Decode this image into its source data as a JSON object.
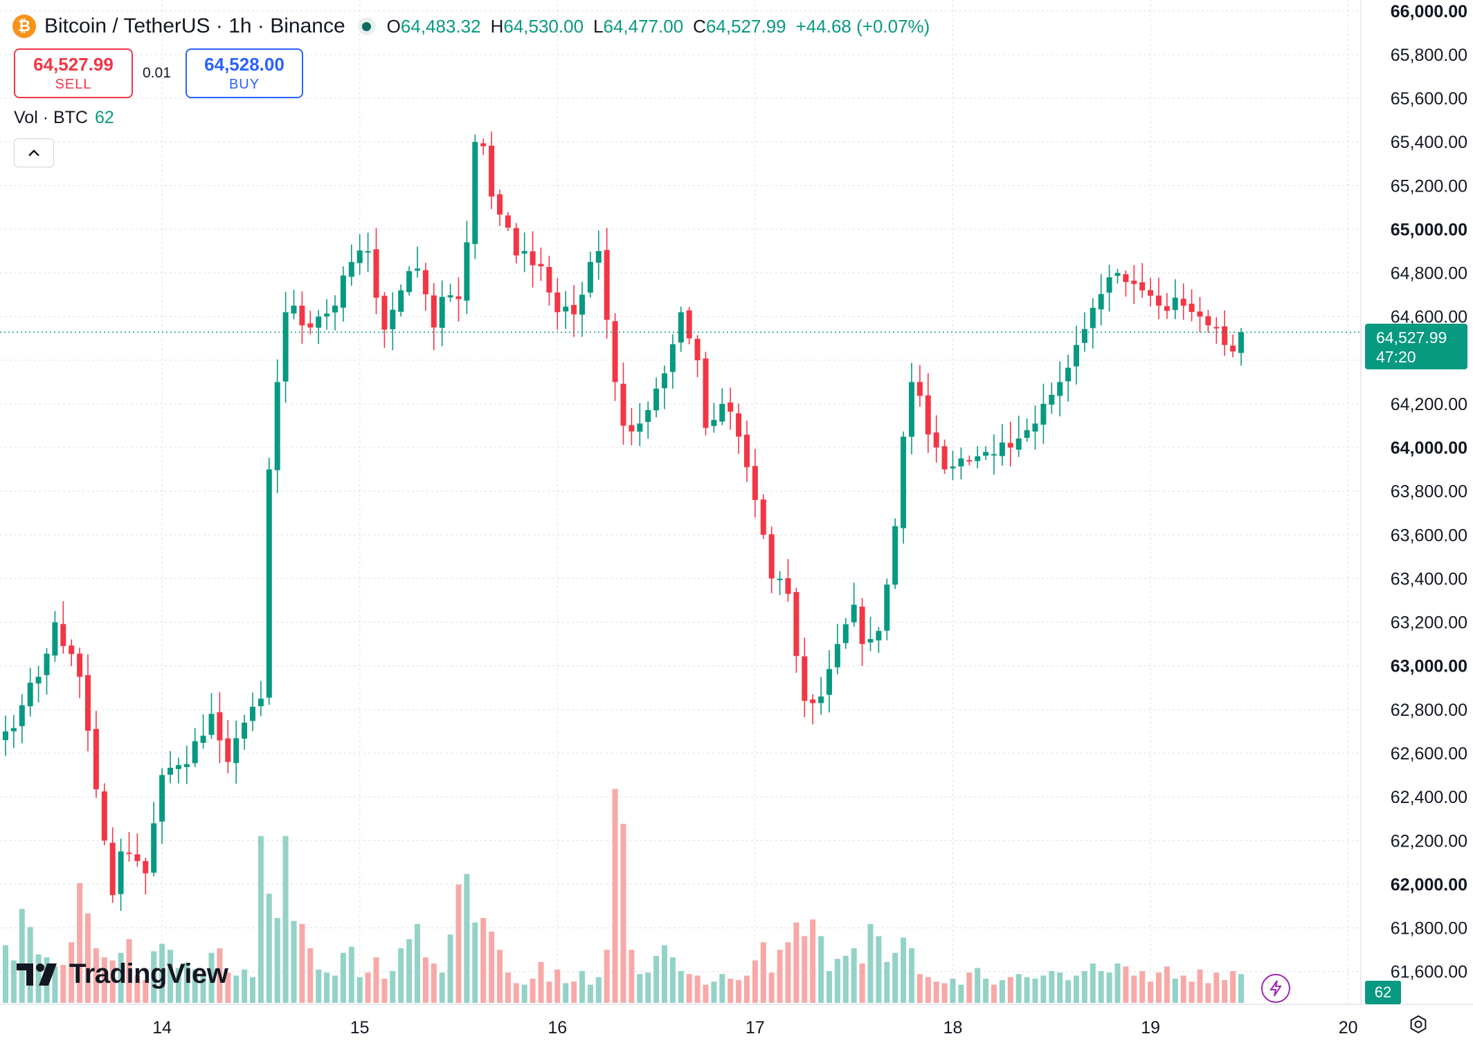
{
  "header": {
    "symbol_icon": "bitcoin-icon",
    "coin_glyph": "₿",
    "title": "Bitcoin / TetherUS · 1h · Binance",
    "live_indicator": "market-open-dot",
    "o_label": "O",
    "o_value": "64,483.32",
    "h_label": "H",
    "h_value": "64,530.00",
    "l_label": "L",
    "l_value": "64,477.00",
    "c_label": "C",
    "c_value": "64,527.99",
    "change": "+44.68 (+0.07%)"
  },
  "trade": {
    "sell_price": "64,527.99",
    "sell_label": "SELL",
    "spread": "0.01",
    "buy_price": "64,528.00",
    "buy_label": "BUY"
  },
  "volume_legend": {
    "label": "Vol · BTC",
    "value": "62"
  },
  "brand": "TradingView",
  "price_tag": {
    "price": "64,527.99",
    "countdown": "47:20"
  },
  "volume_tag": "62",
  "colors": {
    "up": "#089981",
    "down": "#f23645",
    "up_volume": "#93d2c7",
    "down_volume": "#f7a9a7"
  },
  "chart_data": {
    "type": "candlestick",
    "interval": "1h",
    "y_ticks": [
      "61,600.00",
      "61,800.00",
      "62,000.00",
      "62,200.00",
      "62,400.00",
      "62,600.00",
      "62,800.00",
      "63,000.00",
      "63,200.00",
      "63,400.00",
      "63,600.00",
      "63,800.00",
      "64,000.00",
      "64,200.00",
      "64,400.00",
      "64,600.00",
      "64,800.00",
      "65,000.00",
      "65,200.00",
      "65,400.00",
      "65,600.00",
      "65,800.00",
      "66,000.00"
    ],
    "y_tick_values": [
      61600,
      61800,
      62000,
      62200,
      62400,
      62600,
      62800,
      63000,
      63200,
      63400,
      63600,
      63800,
      64000,
      64200,
      64400,
      64600,
      64800,
      65000,
      65200,
      65400,
      65600,
      65800,
      66000
    ],
    "ylim": [
      61450,
      66050
    ],
    "x_ticks": [
      "14",
      "15",
      "16",
      "17",
      "18",
      "19",
      "20"
    ],
    "candle_count": 155,
    "x_tick_candle_index": [
      19,
      43,
      67,
      91,
      115,
      139,
      163
    ],
    "last_price": 64527.99,
    "anchors": [
      [
        0,
        62700
      ],
      [
        2,
        62820
      ],
      [
        4,
        62950
      ],
      [
        6,
        63200
      ],
      [
        9,
        62950
      ],
      [
        12,
        62200
      ],
      [
        13,
        61950
      ],
      [
        14,
        62150
      ],
      [
        17,
        62050
      ],
      [
        19,
        62500
      ],
      [
        22,
        62550
      ],
      [
        25,
        62780
      ],
      [
        27,
        62560
      ],
      [
        29,
        62740
      ],
      [
        31,
        62850
      ],
      [
        32,
        63900
      ],
      [
        33,
        64300
      ],
      [
        34,
        64620
      ],
      [
        35,
        64650
      ],
      [
        37,
        64550
      ],
      [
        40,
        64650
      ],
      [
        42,
        64850
      ],
      [
        44,
        64900
      ],
      [
        46,
        64540
      ],
      [
        48,
        64720
      ],
      [
        50,
        64820
      ],
      [
        52,
        64550
      ],
      [
        53,
        64690
      ],
      [
        55,
        64680
      ],
      [
        56,
        64940
      ],
      [
        57,
        65400
      ],
      [
        58,
        65380
      ],
      [
        59,
        65150
      ],
      [
        62,
        64880
      ],
      [
        65,
        64830
      ],
      [
        67,
        64620
      ],
      [
        69,
        64610
      ],
      [
        70,
        64700
      ],
      [
        71,
        64850
      ],
      [
        72,
        64900
      ],
      [
        74,
        64300
      ],
      [
        75,
        64100
      ],
      [
        77,
        64110
      ],
      [
        79,
        64270
      ],
      [
        80,
        64340
      ],
      [
        82,
        64620
      ],
      [
        83,
        64500
      ],
      [
        84,
        64400
      ],
      [
        85,
        64090
      ],
      [
        87,
        64200
      ],
      [
        89,
        64050
      ],
      [
        91,
        63760
      ],
      [
        93,
        63400
      ],
      [
        95,
        63330
      ],
      [
        97,
        62840
      ],
      [
        99,
        62860
      ],
      [
        101,
        63100
      ],
      [
        103,
        63280
      ],
      [
        104,
        63100
      ],
      [
        106,
        63160
      ],
      [
        108,
        63640
      ],
      [
        109,
        64050
      ],
      [
        110,
        64300
      ],
      [
        113,
        64000
      ],
      [
        114,
        63900
      ],
      [
        116,
        63950
      ],
      [
        118,
        63960
      ],
      [
        120,
        63970
      ],
      [
        122,
        64000
      ],
      [
        124,
        64080
      ],
      [
        126,
        64200
      ],
      [
        128,
        64300
      ],
      [
        130,
        64470
      ],
      [
        132,
        64640
      ],
      [
        134,
        64780
      ],
      [
        135,
        64800
      ],
      [
        138,
        64720
      ],
      [
        140,
        64650
      ],
      [
        143,
        64650
      ],
      [
        145,
        64600
      ],
      [
        146,
        64560
      ],
      [
        148,
        64470
      ],
      [
        149,
        64440
      ],
      [
        150,
        64528
      ]
    ],
    "volume_ylim": [
      0,
      1550
    ],
    "volume_anchors": [
      [
        0,
        380
      ],
      [
        1,
        280
      ],
      [
        2,
        620
      ],
      [
        3,
        500
      ],
      [
        4,
        320
      ],
      [
        5,
        300
      ],
      [
        6,
        240
      ],
      [
        7,
        250
      ],
      [
        8,
        400
      ],
      [
        9,
        790
      ],
      [
        10,
        590
      ],
      [
        11,
        360
      ],
      [
        12,
        300
      ],
      [
        13,
        280
      ],
      [
        14,
        330
      ],
      [
        15,
        420
      ],
      [
        16,
        180
      ],
      [
        17,
        150
      ],
      [
        18,
        340
      ],
      [
        19,
        390
      ],
      [
        20,
        350
      ],
      [
        21,
        230
      ],
      [
        22,
        260
      ],
      [
        23,
        220
      ],
      [
        24,
        190
      ],
      [
        25,
        330
      ],
      [
        26,
        360
      ],
      [
        27,
        200
      ],
      [
        28,
        180
      ],
      [
        29,
        220
      ],
      [
        30,
        170
      ],
      [
        31,
        1100
      ],
      [
        32,
        720
      ],
      [
        33,
        560
      ],
      [
        34,
        1100
      ],
      [
        35,
        540
      ],
      [
        36,
        520
      ],
      [
        37,
        360
      ],
      [
        38,
        220
      ],
      [
        39,
        200
      ],
      [
        40,
        180
      ],
      [
        41,
        330
      ],
      [
        42,
        370
      ],
      [
        43,
        170
      ],
      [
        44,
        200
      ],
      [
        45,
        300
      ],
      [
        46,
        160
      ],
      [
        47,
        210
      ],
      [
        48,
        360
      ],
      [
        49,
        420
      ],
      [
        50,
        520
      ],
      [
        51,
        300
      ],
      [
        52,
        260
      ],
      [
        53,
        200
      ],
      [
        54,
        450
      ],
      [
        55,
        780
      ],
      [
        56,
        850
      ],
      [
        57,
        530
      ],
      [
        58,
        560
      ],
      [
        59,
        470
      ],
      [
        60,
        350
      ],
      [
        61,
        200
      ],
      [
        62,
        130
      ],
      [
        63,
        120
      ],
      [
        64,
        160
      ],
      [
        65,
        270
      ],
      [
        66,
        140
      ],
      [
        67,
        220
      ],
      [
        68,
        130
      ],
      [
        69,
        140
      ],
      [
        70,
        210
      ],
      [
        71,
        120
      ],
      [
        72,
        170
      ],
      [
        73,
        350
      ],
      [
        74,
        1410
      ],
      [
        75,
        1180
      ],
      [
        76,
        350
      ],
      [
        77,
        190
      ],
      [
        78,
        200
      ],
      [
        79,
        310
      ],
      [
        80,
        380
      ],
      [
        81,
        300
      ],
      [
        82,
        210
      ],
      [
        83,
        190
      ],
      [
        84,
        180
      ],
      [
        85,
        120
      ],
      [
        86,
        140
      ],
      [
        87,
        190
      ],
      [
        88,
        160
      ],
      [
        89,
        150
      ],
      [
        90,
        180
      ],
      [
        91,
        280
      ],
      [
        92,
        400
      ],
      [
        93,
        200
      ],
      [
        94,
        350
      ],
      [
        95,
        400
      ],
      [
        96,
        530
      ],
      [
        97,
        440
      ],
      [
        98,
        550
      ],
      [
        99,
        440
      ],
      [
        100,
        210
      ],
      [
        101,
        290
      ],
      [
        102,
        310
      ],
      [
        103,
        360
      ],
      [
        104,
        260
      ],
      [
        105,
        520
      ],
      [
        106,
        440
      ],
      [
        107,
        270
      ],
      [
        108,
        330
      ],
      [
        109,
        430
      ],
      [
        110,
        360
      ],
      [
        111,
        190
      ],
      [
        112,
        170
      ],
      [
        113,
        140
      ],
      [
        114,
        130
      ],
      [
        115,
        160
      ],
      [
        116,
        120
      ],
      [
        117,
        200
      ],
      [
        118,
        230
      ],
      [
        119,
        160
      ],
      [
        120,
        120
      ],
      [
        121,
        150
      ],
      [
        122,
        170
      ],
      [
        123,
        190
      ],
      [
        124,
        170
      ],
      [
        125,
        160
      ],
      [
        126,
        180
      ],
      [
        127,
        210
      ],
      [
        128,
        200
      ],
      [
        129,
        150
      ],
      [
        130,
        180
      ],
      [
        131,
        210
      ],
      [
        132,
        260
      ],
      [
        133,
        210
      ],
      [
        134,
        200
      ],
      [
        135,
        260
      ],
      [
        136,
        240
      ],
      [
        137,
        180
      ],
      [
        138,
        210
      ],
      [
        139,
        140
      ],
      [
        140,
        200
      ],
      [
        141,
        240
      ],
      [
        142,
        160
      ],
      [
        143,
        180
      ],
      [
        144,
        140
      ],
      [
        145,
        220
      ],
      [
        146,
        130
      ],
      [
        147,
        200
      ],
      [
        148,
        150
      ],
      [
        149,
        210
      ],
      [
        150,
        190
      ]
    ]
  }
}
